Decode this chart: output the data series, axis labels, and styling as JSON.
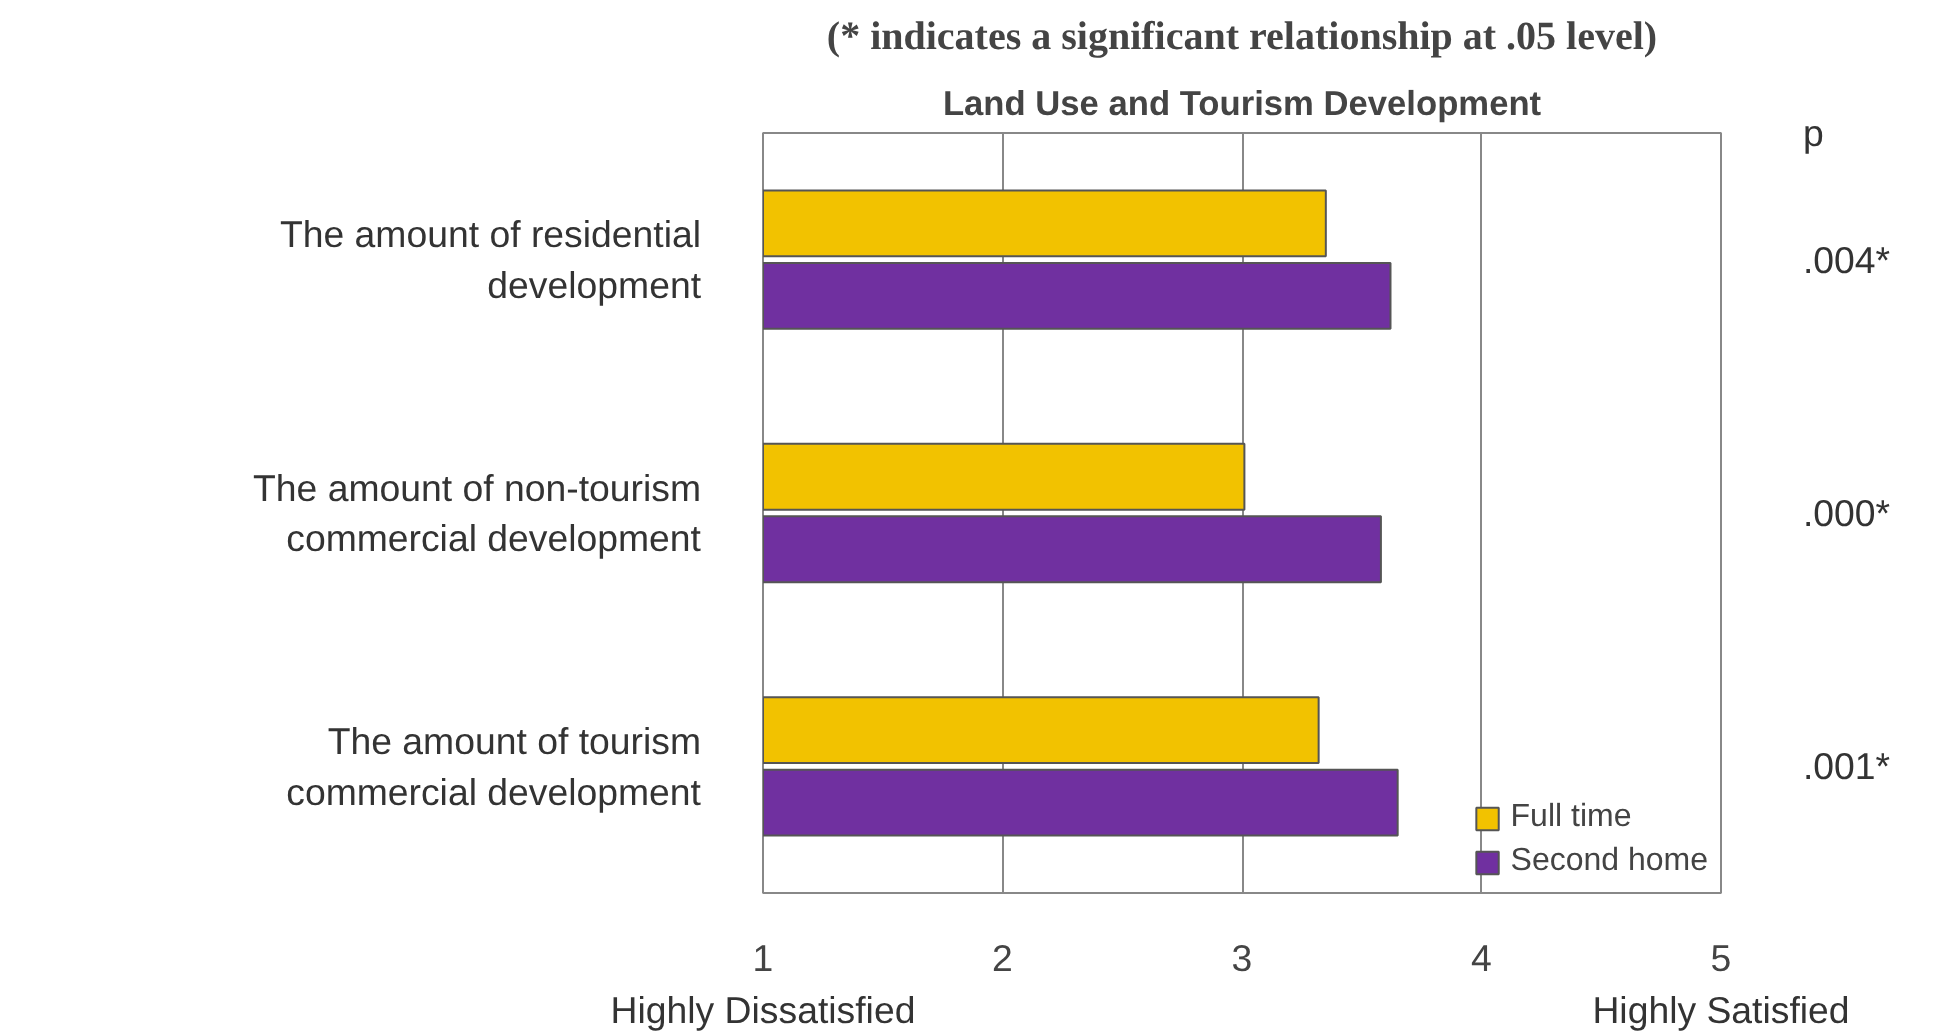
{
  "chart_data": {
    "type": "bar",
    "orientation": "horizontal",
    "title": "(* indicates a significant relationship at .05 level)",
    "subtitle": "Land Use and Tourism Development",
    "categories": [
      "The amount of residential development",
      "The amount of non-tourism commercial development",
      "The amount of tourism commercial development"
    ],
    "series": [
      {
        "name": "Full time",
        "color": "#f2c200",
        "values": [
          3.35,
          3.01,
          3.32
        ]
      },
      {
        "name": "Second home",
        "color": "#7030a0",
        "values": [
          3.62,
          3.58,
          3.65
        ]
      }
    ],
    "xlim": [
      1,
      5
    ],
    "xticks": [
      1,
      2,
      3,
      4,
      5
    ],
    "grid": "x",
    "legend": "bottom right",
    "annotations": [
      "p",
      ".004*",
      ".000*",
      ".001*",
      "Highly Dissatisfied",
      "Highly Satisfied"
    ]
  }
}
